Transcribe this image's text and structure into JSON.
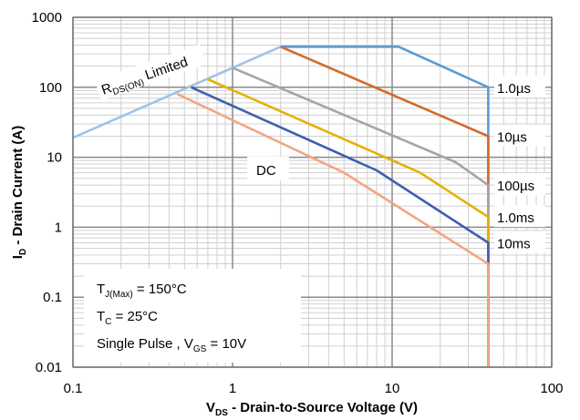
{
  "chart_data": {
    "type": "line",
    "x_scale": "log",
    "y_scale": "log",
    "xlim": [
      0.1,
      100
    ],
    "ylim": [
      0.01,
      1000
    ],
    "grid": true,
    "x_ticks": [
      "0.1",
      "1",
      "10",
      "100"
    ],
    "y_ticks": [
      "0.01",
      "0.1",
      "1",
      "10",
      "100",
      "1000"
    ],
    "xlabel": {
      "main": "V",
      "sub": "DS",
      "rest": " - Drain-to-Source Voltage (V)"
    },
    "ylabel": {
      "main": "I",
      "sub": "D",
      "rest": " - Drain Current (A)"
    },
    "rds_label": {
      "main": "R",
      "sub": "DS(ON)",
      "rest": " Limited"
    },
    "dc_label": "DC",
    "conditions": {
      "tj": {
        "main": "T",
        "sub": "J(Max)",
        "rest": " = 150°C"
      },
      "tc": {
        "main": "T",
        "sub": "C",
        "rest": " = 25°C"
      },
      "pulse": {
        "main": "Single Pulse , V",
        "sub": "GS",
        "rest": " = 10V"
      }
    },
    "series": [
      {
        "name": "RDS(ON) Limited",
        "color": "#9dc3e6",
        "points": [
          [
            0.1,
            19
          ],
          [
            1,
            190
          ],
          [
            2,
            380
          ]
        ]
      },
      {
        "name": "1.0µs",
        "color": "#5b9bd5",
        "points": [
          [
            2,
            380
          ],
          [
            11,
            380
          ],
          [
            40,
            100
          ],
          [
            40,
            0.01
          ]
        ]
      },
      {
        "name": "10µs",
        "color": "#d46b2a",
        "points": [
          [
            2,
            380
          ],
          [
            40,
            20
          ],
          [
            40,
            0.01
          ]
        ]
      },
      {
        "name": "100µs",
        "color": "#a5a5a5",
        "points": [
          [
            1,
            190
          ],
          [
            25,
            8.5
          ],
          [
            40,
            4
          ],
          [
            40,
            0.01
          ]
        ]
      },
      {
        "name": "1.0ms",
        "color": "#e6b000",
        "points": [
          [
            0.7,
            130
          ],
          [
            15,
            6
          ],
          [
            40,
            1.4
          ],
          [
            40,
            0.01
          ]
        ]
      },
      {
        "name": "10ms",
        "color": "#3f5faf",
        "points": [
          [
            0.55,
            100
          ],
          [
            8,
            6.5
          ],
          [
            40,
            0.6
          ],
          [
            40,
            0.01
          ]
        ]
      },
      {
        "name": "DC",
        "color": "#f4a582",
        "points": [
          [
            0.45,
            80
          ],
          [
            5,
            6
          ],
          [
            40,
            0.3
          ],
          [
            40,
            0.01
          ]
        ]
      }
    ],
    "line_labels": [
      {
        "text": "1.0µs",
        "at_y": 100
      },
      {
        "text": "10µs",
        "at_y": 20
      },
      {
        "text": "100µs",
        "at_y": 4
      },
      {
        "text": "1.0ms",
        "at_y": 1.4
      },
      {
        "text": "10ms",
        "at_y": 0.6
      }
    ]
  }
}
